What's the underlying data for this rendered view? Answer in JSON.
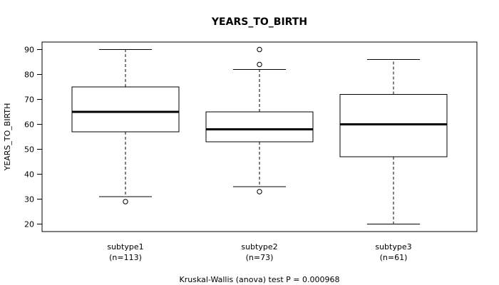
{
  "chart_data": {
    "type": "boxplot",
    "title": "YEARS_TO_BIRTH",
    "ylabel": "YEARS_TO_BIRTH",
    "xlabel": "",
    "ylim": [
      17,
      93
    ],
    "yticks": [
      20,
      30,
      40,
      50,
      60,
      70,
      80,
      90
    ],
    "grid": false,
    "legend": "none",
    "footer": "Kruskal-Wallis (anova) test P = 0.000968",
    "groups": [
      {
        "name": "subtype1",
        "n_label": "(n=113)",
        "whisker_low": 31,
        "q1": 57,
        "median": 65,
        "q3": 75,
        "whisker_high": 90,
        "outliers": [
          29
        ]
      },
      {
        "name": "subtype2",
        "n_label": "(n=73)",
        "whisker_low": 35,
        "q1": 53,
        "median": 58,
        "q3": 65,
        "whisker_high": 82,
        "outliers": [
          33,
          84,
          90
        ]
      },
      {
        "name": "subtype3",
        "n_label": "(n=61)",
        "whisker_low": 20,
        "q1": 47,
        "median": 60,
        "q3": 72,
        "whisker_high": 86,
        "outliers": []
      }
    ]
  }
}
